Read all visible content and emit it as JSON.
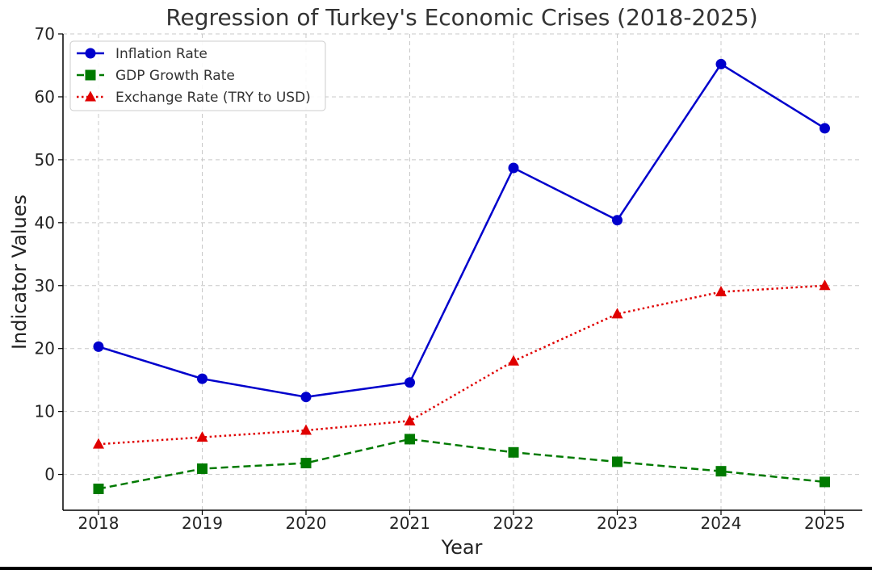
{
  "chart_data": {
    "type": "line",
    "title": "Regression of Turkey's Economic Crises (2018-2025)",
    "xlabel": "Year",
    "ylabel": "Indicator Values",
    "categories": [
      "2018",
      "2019",
      "2020",
      "2021",
      "2022",
      "2023",
      "2024",
      "2025"
    ],
    "ylim": [
      -5.7,
      70
    ],
    "yticks": [
      0,
      10,
      20,
      30,
      40,
      50,
      60,
      70
    ],
    "grid": true,
    "legend_position": "top-left",
    "series": [
      {
        "name": "Inflation Rate",
        "values": [
          20.3,
          15.2,
          12.3,
          14.6,
          48.7,
          40.4,
          65.2,
          55.0
        ],
        "color": "#0000cc",
        "line_style": "solid",
        "marker": "circle"
      },
      {
        "name": "GDP Growth Rate",
        "values": [
          -2.3,
          0.9,
          1.8,
          5.6,
          3.5,
          2.0,
          0.5,
          -1.2
        ],
        "color": "#007a00",
        "line_style": "dashed",
        "marker": "square"
      },
      {
        "name": "Exchange Rate (TRY to USD)",
        "values": [
          4.8,
          5.9,
          7.0,
          8.5,
          18.0,
          25.5,
          29.0,
          30.0
        ],
        "color": "#e00000",
        "line_style": "dotted",
        "marker": "triangle"
      }
    ]
  }
}
